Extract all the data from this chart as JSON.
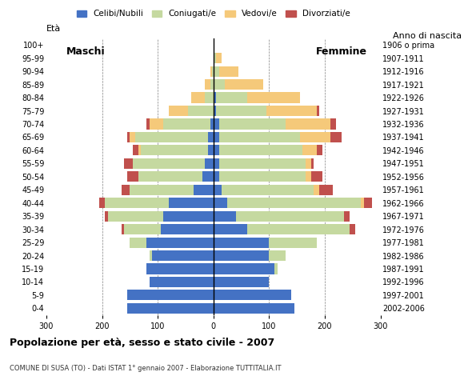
{
  "age_groups": [
    "0-4",
    "5-9",
    "10-14",
    "15-19",
    "20-24",
    "25-29",
    "30-34",
    "35-39",
    "40-44",
    "45-49",
    "50-54",
    "55-59",
    "60-64",
    "65-69",
    "70-74",
    "75-79",
    "80-84",
    "85-89",
    "90-94",
    "95-99",
    "100+"
  ],
  "birth_years": [
    "2002-2006",
    "1997-2001",
    "1992-1996",
    "1987-1991",
    "1982-1986",
    "1977-1981",
    "1972-1976",
    "1967-1971",
    "1962-1966",
    "1957-1961",
    "1952-1956",
    "1947-1951",
    "1942-1946",
    "1937-1941",
    "1932-1936",
    "1927-1931",
    "1922-1926",
    "1917-1921",
    "1912-1916",
    "1907-1911",
    "1906 o prima"
  ],
  "males": {
    "celibe": [
      155,
      155,
      115,
      120,
      110,
      120,
      95,
      90,
      80,
      35,
      20,
      15,
      10,
      10,
      5,
      0,
      0,
      0,
      0,
      0,
      0
    ],
    "coniugato": [
      0,
      0,
      0,
      0,
      5,
      30,
      65,
      100,
      115,
      115,
      115,
      130,
      120,
      130,
      85,
      45,
      15,
      5,
      2,
      0,
      0
    ],
    "vedovo": [
      0,
      0,
      0,
      0,
      0,
      0,
      0,
      0,
      0,
      0,
      0,
      0,
      5,
      10,
      25,
      35,
      25,
      10,
      3,
      0,
      0
    ],
    "divorziato": [
      0,
      0,
      0,
      0,
      0,
      0,
      5,
      5,
      10,
      15,
      20,
      15,
      10,
      5,
      5,
      0,
      0,
      0,
      0,
      0,
      0
    ]
  },
  "females": {
    "nubile": [
      145,
      140,
      100,
      110,
      100,
      100,
      60,
      40,
      25,
      15,
      10,
      10,
      10,
      10,
      10,
      5,
      5,
      0,
      0,
      0,
      0
    ],
    "coniugata": [
      0,
      0,
      0,
      5,
      30,
      85,
      185,
      195,
      240,
      165,
      155,
      155,
      150,
      145,
      120,
      90,
      55,
      20,
      10,
      5,
      0
    ],
    "vedova": [
      0,
      0,
      0,
      0,
      0,
      0,
      0,
      0,
      5,
      10,
      10,
      10,
      25,
      55,
      80,
      90,
      95,
      70,
      35,
      10,
      0
    ],
    "divorziata": [
      0,
      0,
      0,
      0,
      0,
      0,
      10,
      10,
      15,
      25,
      20,
      5,
      10,
      20,
      10,
      5,
      0,
      0,
      0,
      0,
      0
    ]
  },
  "colors": {
    "celibe": "#4472C4",
    "coniugato": "#C5D9A0",
    "vedovo": "#F5C97A",
    "divorziato": "#C0504D"
  },
  "xlim": 300,
  "title": "Popolazione per età, sesso e stato civile - 2007",
  "subtitle": "COMUNE DI SUSA (TO) - Dati ISTAT 1° gennaio 2007 - Elaborazione TUTTITALIA.IT",
  "legend_labels": [
    "Celibi/Nubili",
    "Coniugati/e",
    "Vedovi/e",
    "Divorziati/e"
  ],
  "label_eta": "Età",
  "label_anno": "Anno di nascita",
  "label_maschi": "Maschi",
  "label_femmine": "Femmine",
  "background_color": "#ffffff",
  "bar_height": 0.8
}
